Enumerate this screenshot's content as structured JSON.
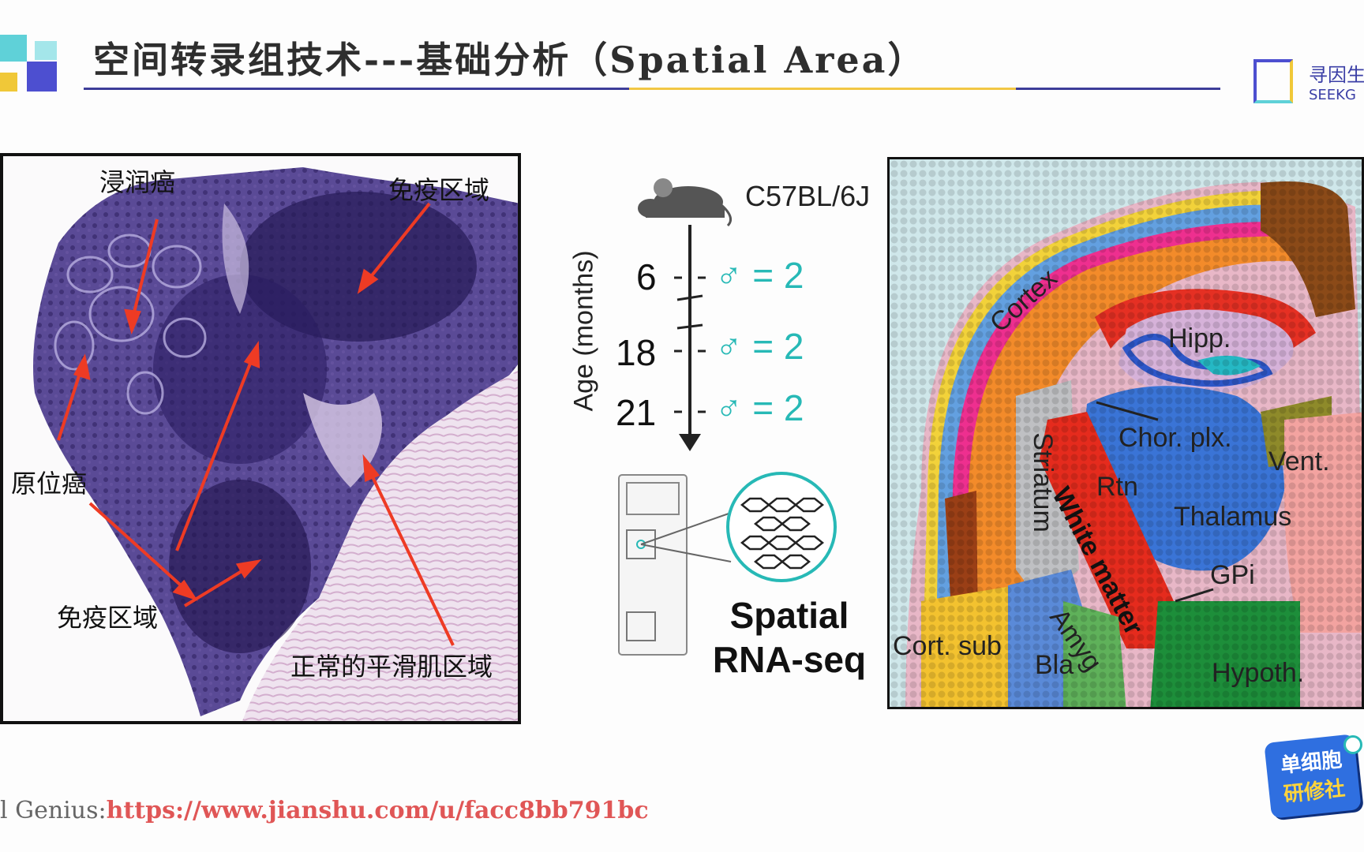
{
  "header": {
    "title": "空间转录组技术---基础分析（Spatial Area）",
    "brand_name": "寻因生",
    "brand_sub": "SEEKG"
  },
  "left_figure": {
    "labels": {
      "invasive": "浸润癌",
      "immune_top": "免疫区域",
      "in_situ": "原位癌",
      "immune_bottom": "免疫区域",
      "smooth_muscle": "正常的平滑肌区域"
    }
  },
  "middle_figure": {
    "strain": "C57BL/6J",
    "axis_label": "Age (months)",
    "ages": [
      {
        "age": "6",
        "count": "♂ = 2"
      },
      {
        "age": "18",
        "count": "♂ = 2"
      },
      {
        "age": "21",
        "count": "♂ = 2"
      }
    ],
    "method_line1": "Spatial",
    "method_line2": "RNA-seq",
    "accent_color": "#27b9b6"
  },
  "right_figure": {
    "regions": [
      "Cortex",
      "Hipp.",
      "Chor. plx.",
      "Vent.",
      "Striatum",
      "Rtn",
      "Thalamus",
      "White matter",
      "GPi",
      "Amyg",
      "Cort. sub",
      "Bla",
      "Hypoth."
    ]
  },
  "footer": {
    "prefix": "l Genius:",
    "url": "https://www.jianshu.com/u/facc8bb791bc"
  },
  "badge": {
    "line1": "单细胞",
    "line2": "研修社"
  }
}
